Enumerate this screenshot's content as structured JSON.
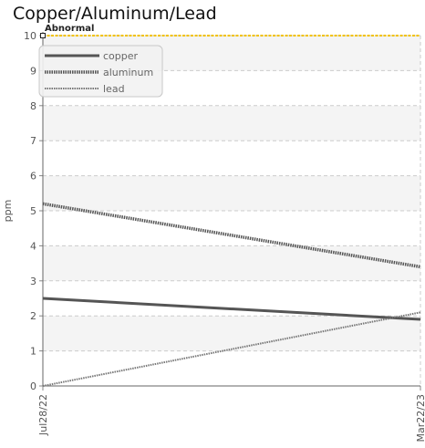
{
  "chart_data": {
    "type": "line",
    "title": "Copper/Aluminum/Lead",
    "xlabel": "",
    "ylabel": "ppm",
    "x": [
      "Jul28/22",
      "Mar22/23"
    ],
    "ylim": [
      0,
      10
    ],
    "yticks": [
      0,
      1,
      2,
      3,
      4,
      5,
      6,
      7,
      8,
      9,
      10
    ],
    "grid": true,
    "legend_position": "top-left",
    "series": [
      {
        "name": "copper",
        "values": [
          2.5,
          1.9
        ],
        "color": "#555555",
        "style": "solid"
      },
      {
        "name": "aluminum",
        "values": [
          5.2,
          3.4
        ],
        "color": "#555555",
        "style": "dotted-thick"
      },
      {
        "name": "lead",
        "values": [
          0.0,
          2.1
        ],
        "color": "#777777",
        "style": "dotted-thin"
      }
    ],
    "thresholds": [
      {
        "label": "Abnormal",
        "value": 10,
        "color": "#f2c200"
      }
    ]
  }
}
